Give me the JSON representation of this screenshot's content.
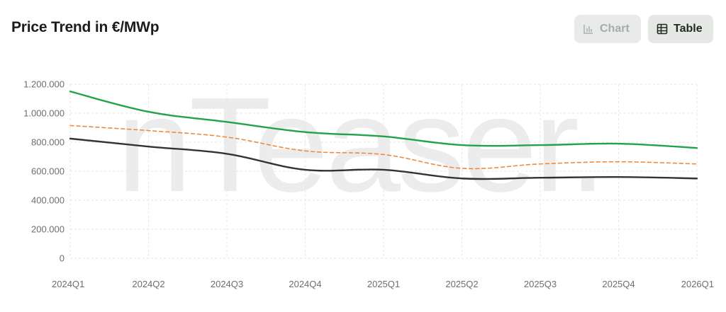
{
  "header": {
    "title": "Price Trend in €/MWp",
    "chart_button_label": "Chart",
    "table_button_label": "Table",
    "chart_button_icon": "bar-chart-icon",
    "table_button_icon": "table-grid-icon"
  },
  "watermark": {
    "text": "nTeaser."
  },
  "colors": {
    "green": "#22a24a",
    "orange": "#f08a3c",
    "dark": "#333333",
    "grid": "#e6e6e6"
  },
  "chart_data": {
    "type": "line",
    "categories": [
      "2024Q1",
      "2024Q2",
      "2024Q3",
      "2024Q4",
      "2025Q1",
      "2025Q2",
      "2025Q3",
      "2025Q4",
      "2026Q1"
    ],
    "y_ticks": [
      "0",
      "200.000",
      "400.000",
      "600.000",
      "800.000",
      "1.000.000",
      "1.200.000"
    ],
    "ylim": [
      0,
      1200000
    ],
    "grid": true,
    "legend": "none",
    "series": [
      {
        "color": "#22a24a",
        "dashed": false,
        "values": [
          1150000,
          1010000,
          940000,
          870000,
          840000,
          780000,
          780000,
          790000,
          760000
        ]
      },
      {
        "color": "#f08a3c",
        "dashed": true,
        "values": [
          915000,
          880000,
          835000,
          740000,
          715000,
          620000,
          650000,
          665000,
          650000
        ]
      },
      {
        "color": "#333333",
        "dashed": false,
        "values": [
          825000,
          770000,
          720000,
          610000,
          610000,
          550000,
          555000,
          560000,
          550000
        ]
      }
    ]
  }
}
